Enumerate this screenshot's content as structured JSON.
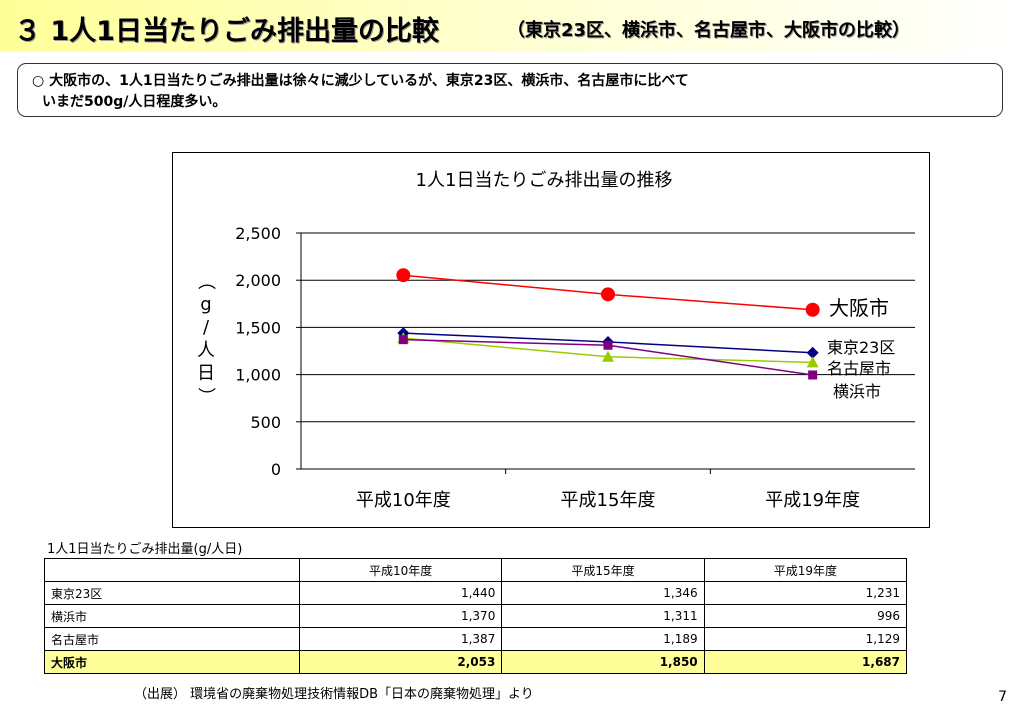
{
  "header": {
    "title": "３ 1人1日当たりごみ排出量の比較",
    "subtitle": "（東京23区、横浜市、名古屋市、大阪市の比較）"
  },
  "note": {
    "line1": "○ 大阪市の、1人1日当たりごみ排出量は徐々に減少しているが、東京23区、横浜市、名古屋市に比べて",
    "line2": "いまだ500g/人日程度多い。"
  },
  "chart_data": {
    "type": "line",
    "title": "1人1日当たりごみ排出量の推移",
    "ylabel": "（g/人日）",
    "categories": [
      "平成10年度",
      "平成15年度",
      "平成19年度"
    ],
    "ylim": [
      0,
      2500
    ],
    "yticks": [
      "0",
      "500",
      "1,000",
      "1,500",
      "2,000",
      "2,500"
    ],
    "ytick_values": [
      0,
      500,
      1000,
      1500,
      2000,
      2500
    ],
    "grid": true,
    "legend": "right, labels at line ends",
    "series": [
      {
        "name": "大阪市",
        "values": [
          2053,
          1850,
          1687
        ],
        "color": "#ff0000",
        "marker": "circle"
      },
      {
        "name": "東京23区",
        "values": [
          1440,
          1346,
          1231
        ],
        "color": "#000080",
        "marker": "diamond"
      },
      {
        "name": "名古屋市",
        "values": [
          1387,
          1189,
          1129
        ],
        "color": "#99cc00",
        "marker": "triangle"
      },
      {
        "name": "横浜市",
        "values": [
          1370,
          1311,
          996
        ],
        "color": "#800080",
        "marker": "square"
      }
    ]
  },
  "table": {
    "caption": "1人1日当たりごみ排出量(g/人日)",
    "headers": [
      "",
      "平成10年度",
      "平成15年度",
      "平成19年度"
    ],
    "rows": [
      {
        "name": "東京23区",
        "values": [
          "1,440",
          "1,346",
          "1,231"
        ]
      },
      {
        "name": "横浜市",
        "values": [
          "1,370",
          "1,311",
          "996"
        ]
      },
      {
        "name": "名古屋市",
        "values": [
          "1,387",
          "1,189",
          "1,129"
        ]
      },
      {
        "name": "大阪市",
        "values": [
          "2,053",
          "1,850",
          "1,687"
        ]
      }
    ]
  },
  "footer": {
    "source": "（出展） 環境省の廃棄物処理技術情報DB「日本の廃棄物処理」より",
    "page": "7"
  }
}
